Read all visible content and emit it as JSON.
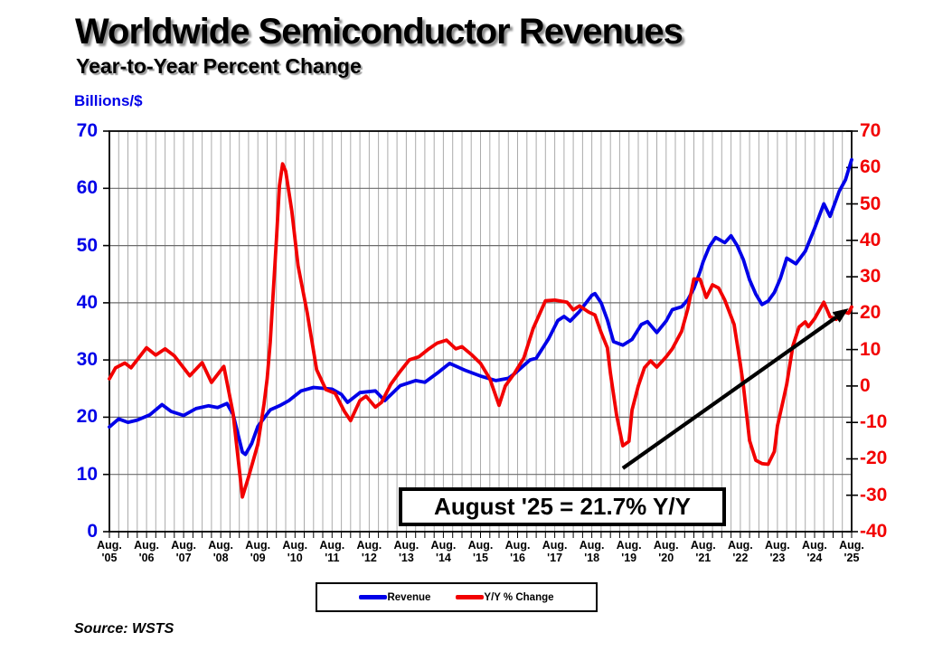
{
  "title": "Worldwide Semiconductor Revenues",
  "subtitle": "Year-to-Year Percent Change",
  "left_axis": {
    "label": "Billions/$",
    "color": "#0000E8",
    "ticks": [
      70,
      60,
      50,
      40,
      30,
      20,
      10,
      0
    ]
  },
  "right_axis": {
    "color": "#F20000",
    "ticks": [
      70,
      60,
      50,
      40,
      30,
      20,
      10,
      0,
      -10,
      -20,
      -30,
      -40
    ]
  },
  "x_axis": {
    "labels": [
      {
        "line1": "Aug.",
        "line2": "'05"
      },
      {
        "line1": "Aug.",
        "line2": "'06"
      },
      {
        "line1": "Aug.",
        "line2": "'07"
      },
      {
        "line1": "Aug.",
        "line2": "'08"
      },
      {
        "line1": "Aug.",
        "line2": "'09"
      },
      {
        "line1": "Aug.",
        "line2": "'10"
      },
      {
        "line1": "Aug.",
        "line2": "'11"
      },
      {
        "line1": "Aug.",
        "line2": "'12"
      },
      {
        "line1": "Aug.",
        "line2": "'13"
      },
      {
        "line1": "Aug.",
        "line2": "'14"
      },
      {
        "line1": "Aug.",
        "line2": "'15"
      },
      {
        "line1": "Aug.",
        "line2": "'16"
      },
      {
        "line1": "Aug.",
        "line2": "'17"
      },
      {
        "line1": "Aug.",
        "line2": "'18"
      },
      {
        "line1": "Aug.",
        "line2": "'19"
      },
      {
        "line1": "Aug.",
        "line2": "'20"
      },
      {
        "line1": "Aug.",
        "line2": "'21"
      },
      {
        "line1": "Aug.",
        "line2": "'22"
      },
      {
        "line1": "Aug.",
        "line2": "'23"
      },
      {
        "line1": "Aug.",
        "line2": "'24"
      },
      {
        "line1": "Aug.",
        "line2": "'25"
      }
    ]
  },
  "legend": [
    {
      "label": "Revenue",
      "color": "#0000E8"
    },
    {
      "label": "Y/Y % Change",
      "color": "#F20000"
    }
  ],
  "annotation": {
    "text": "August '25 = 21.7% Y/Y"
  },
  "source": "Source: WSTS",
  "chart_data": {
    "type": "line",
    "title": "Worldwide Semiconductor Revenues — Year-to-Year Percent Change",
    "x_description": "Monthly, month index 0 = Aug 2005 through 240 = Aug 2025; x tick labels every August",
    "left_ylim": [
      0,
      70
    ],
    "right_ylim": [
      -40,
      70
    ],
    "grid": {
      "vertical_every_months": 3,
      "horizontal_left_step": 10
    },
    "series": [
      {
        "name": "Revenue",
        "axis": "left",
        "unit": "US$ billions per month",
        "color": "#0000E8",
        "points": [
          [
            0,
            18.3
          ],
          [
            3,
            19.7
          ],
          [
            6,
            19.1
          ],
          [
            9,
            19.5
          ],
          [
            13,
            20.4
          ],
          [
            17,
            22.2
          ],
          [
            20,
            21.0
          ],
          [
            24,
            20.3
          ],
          [
            28,
            21.5
          ],
          [
            32,
            22.0
          ],
          [
            35,
            21.7
          ],
          [
            38,
            22.4
          ],
          [
            40,
            20.5
          ],
          [
            43,
            13.9
          ],
          [
            44,
            13.5
          ],
          [
            46,
            15.4
          ],
          [
            48,
            18.4
          ],
          [
            52,
            21.3
          ],
          [
            55,
            22.0
          ],
          [
            58,
            22.9
          ],
          [
            62,
            24.6
          ],
          [
            66,
            25.2
          ],
          [
            72,
            24.9
          ],
          [
            75,
            24.0
          ],
          [
            77,
            22.6
          ],
          [
            81,
            24.3
          ],
          [
            86,
            24.6
          ],
          [
            89,
            22.9
          ],
          [
            94,
            25.5
          ],
          [
            99,
            26.4
          ],
          [
            102,
            26.1
          ],
          [
            106,
            27.7
          ],
          [
            110,
            29.4
          ],
          [
            115,
            28.2
          ],
          [
            120,
            27.2
          ],
          [
            125,
            26.4
          ],
          [
            129,
            26.8
          ],
          [
            131,
            27.6
          ],
          [
            136,
            30.0
          ],
          [
            138,
            30.3
          ],
          [
            142,
            33.7
          ],
          [
            145,
            36.9
          ],
          [
            147,
            37.6
          ],
          [
            149,
            36.8
          ],
          [
            152,
            38.5
          ],
          [
            156,
            41.3
          ],
          [
            157,
            41.6
          ],
          [
            159,
            40.0
          ],
          [
            161,
            37.0
          ],
          [
            163,
            33.2
          ],
          [
            166,
            32.6
          ],
          [
            169,
            33.6
          ],
          [
            172,
            36.2
          ],
          [
            174,
            36.7
          ],
          [
            177,
            34.8
          ],
          [
            180,
            36.8
          ],
          [
            182,
            38.8
          ],
          [
            185,
            39.3
          ],
          [
            187,
            40.5
          ],
          [
            189,
            42.5
          ],
          [
            191,
            45.5
          ],
          [
            192,
            47.2
          ],
          [
            194,
            49.8
          ],
          [
            196,
            51.4
          ],
          [
            199,
            50.5
          ],
          [
            201,
            51.7
          ],
          [
            203,
            50.0
          ],
          [
            205,
            47.5
          ],
          [
            207,
            44.0
          ],
          [
            209,
            41.5
          ],
          [
            211,
            39.7
          ],
          [
            213,
            40.3
          ],
          [
            215,
            41.8
          ],
          [
            217,
            44.3
          ],
          [
            219,
            47.8
          ],
          [
            222,
            46.8
          ],
          [
            225,
            49.0
          ],
          [
            228,
            53.0
          ],
          [
            231,
            57.3
          ],
          [
            233,
            55.1
          ],
          [
            236,
            59.5
          ],
          [
            238,
            61.5
          ],
          [
            240,
            65.0
          ]
        ]
      },
      {
        "name": "Y/Y % Change",
        "axis": "right",
        "unit": "percent",
        "color": "#F20000",
        "points": [
          [
            0,
            2.0
          ],
          [
            2,
            5.0
          ],
          [
            5,
            6.3
          ],
          [
            7,
            5.0
          ],
          [
            12,
            10.5
          ],
          [
            15,
            8.5
          ],
          [
            18,
            10.2
          ],
          [
            21,
            8.3
          ],
          [
            24,
            5.0
          ],
          [
            26,
            2.8
          ],
          [
            30,
            6.4
          ],
          [
            33,
            1.0
          ],
          [
            37,
            5.4
          ],
          [
            40,
            -7.5
          ],
          [
            43,
            -30.5
          ],
          [
            45,
            -25.0
          ],
          [
            48,
            -16.0
          ],
          [
            50,
            -5.0
          ],
          [
            51,
            2.0
          ],
          [
            52,
            12.0
          ],
          [
            54,
            40.0
          ],
          [
            55,
            55.0
          ],
          [
            56,
            61.0
          ],
          [
            57,
            59.0
          ],
          [
            59,
            48.0
          ],
          [
            61,
            33.0
          ],
          [
            64,
            20.0
          ],
          [
            67,
            4.5
          ],
          [
            70,
            -1.0
          ],
          [
            73,
            -2.0
          ],
          [
            76,
            -7.0
          ],
          [
            78,
            -9.5
          ],
          [
            81,
            -4.0
          ],
          [
            83,
            -2.8
          ],
          [
            86,
            -5.8
          ],
          [
            88,
            -4.5
          ],
          [
            91,
            0.5
          ],
          [
            94,
            4.0
          ],
          [
            97,
            7.2
          ],
          [
            100,
            8.0
          ],
          [
            103,
            10.0
          ],
          [
            106,
            11.8
          ],
          [
            109,
            12.6
          ],
          [
            112,
            10.2
          ],
          [
            114,
            10.8
          ],
          [
            117,
            8.7
          ],
          [
            120,
            6.2
          ],
          [
            123,
            2.0
          ],
          [
            126,
            -5.3
          ],
          [
            128,
            0.0
          ],
          [
            131,
            3.5
          ],
          [
            134,
            7.7
          ],
          [
            137,
            15.8
          ],
          [
            141,
            23.4
          ],
          [
            144,
            23.6
          ],
          [
            148,
            23.0
          ],
          [
            150,
            20.9
          ],
          [
            152,
            22.0
          ],
          [
            155,
            20.3
          ],
          [
            157,
            19.5
          ],
          [
            159,
            14.7
          ],
          [
            161,
            10.5
          ],
          [
            162,
            3.5
          ],
          [
            164,
            -8.0
          ],
          [
            166,
            -16.4
          ],
          [
            168,
            -15.2
          ],
          [
            169,
            -6.6
          ],
          [
            171,
            0.0
          ],
          [
            173,
            5.0
          ],
          [
            175,
            6.9
          ],
          [
            177,
            5.2
          ],
          [
            180,
            8.0
          ],
          [
            182,
            10.2
          ],
          [
            185,
            15.0
          ],
          [
            187,
            21.1
          ],
          [
            189,
            29.4
          ],
          [
            191,
            29.3
          ],
          [
            193,
            24.3
          ],
          [
            195,
            27.8
          ],
          [
            197,
            26.9
          ],
          [
            199,
            23.6
          ],
          [
            202,
            16.9
          ],
          [
            204,
            6.0
          ],
          [
            205,
            0.0
          ],
          [
            207,
            -15.0
          ],
          [
            209,
            -20.4
          ],
          [
            211,
            -21.3
          ],
          [
            213,
            -21.5
          ],
          [
            215,
            -18.0
          ],
          [
            216,
            -11.0
          ],
          [
            218,
            -3.5
          ],
          [
            219,
            0.5
          ],
          [
            221,
            11.0
          ],
          [
            223,
            16.2
          ],
          [
            225,
            17.6
          ],
          [
            226,
            16.3
          ],
          [
            228,
            18.5
          ],
          [
            230,
            21.5
          ],
          [
            231,
            23.0
          ],
          [
            233,
            19.0
          ],
          [
            235,
            18.3
          ],
          [
            237,
            20.5
          ],
          [
            239,
            20.0
          ],
          [
            240,
            21.7
          ]
        ]
      }
    ],
    "trend_arrow": {
      "axis": "right",
      "from": [
        166,
        -22.6
      ],
      "to": [
        239,
        21.3
      ]
    }
  }
}
